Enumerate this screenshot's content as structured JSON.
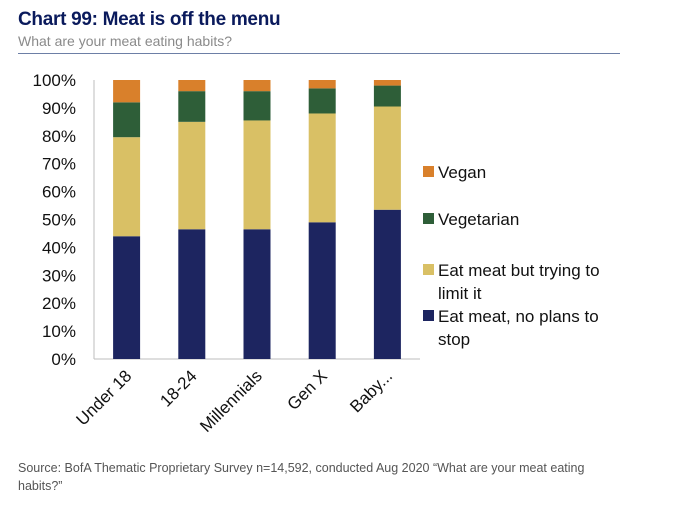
{
  "header": {
    "title": "Chart 99: Meat is off the menu",
    "subtitle": "What are your meat eating habits?"
  },
  "footer": {
    "source": "Source: BofA Thematic Proprietary Survey n=14,592, conducted Aug 2020 “What are your meat eating habits?”"
  },
  "chart_data": {
    "type": "bar",
    "stacked": true,
    "categories": [
      "Under 18",
      "18-24",
      "Millennials",
      "Gen X",
      "Baby..."
    ],
    "series": [
      {
        "name": "Eat meat, no plans to stop",
        "color": "#1d2560",
        "values": [
          44,
          46.5,
          46.5,
          49,
          53.5
        ]
      },
      {
        "name": "Eat meat but trying to limit it",
        "color": "#d9c065",
        "values": [
          35.5,
          38.5,
          39,
          39,
          37
        ]
      },
      {
        "name": "Vegetarian",
        "color": "#2e5e38",
        "values": [
          12.5,
          11,
          10.5,
          9,
          7.5
        ]
      },
      {
        "name": "Vegan",
        "color": "#d9802b",
        "values": [
          8,
          4,
          4,
          3,
          2
        ]
      }
    ],
    "legend_order": [
      "Vegan",
      "Vegetarian",
      "Eat meat but trying to limit it",
      "Eat meat, no plans to stop"
    ],
    "legend_labels": [
      [
        "Vegan"
      ],
      [
        "Vegetarian"
      ],
      [
        "Eat meat but trying to",
        "limit it"
      ],
      [
        "Eat meat, no plans to",
        "stop"
      ]
    ],
    "yticks": [
      "0%",
      "10%",
      "20%",
      "30%",
      "40%",
      "50%",
      "60%",
      "70%",
      "80%",
      "90%",
      "100%"
    ],
    "ylim": [
      0,
      100
    ],
    "grid": false,
    "legend_position": "right"
  }
}
